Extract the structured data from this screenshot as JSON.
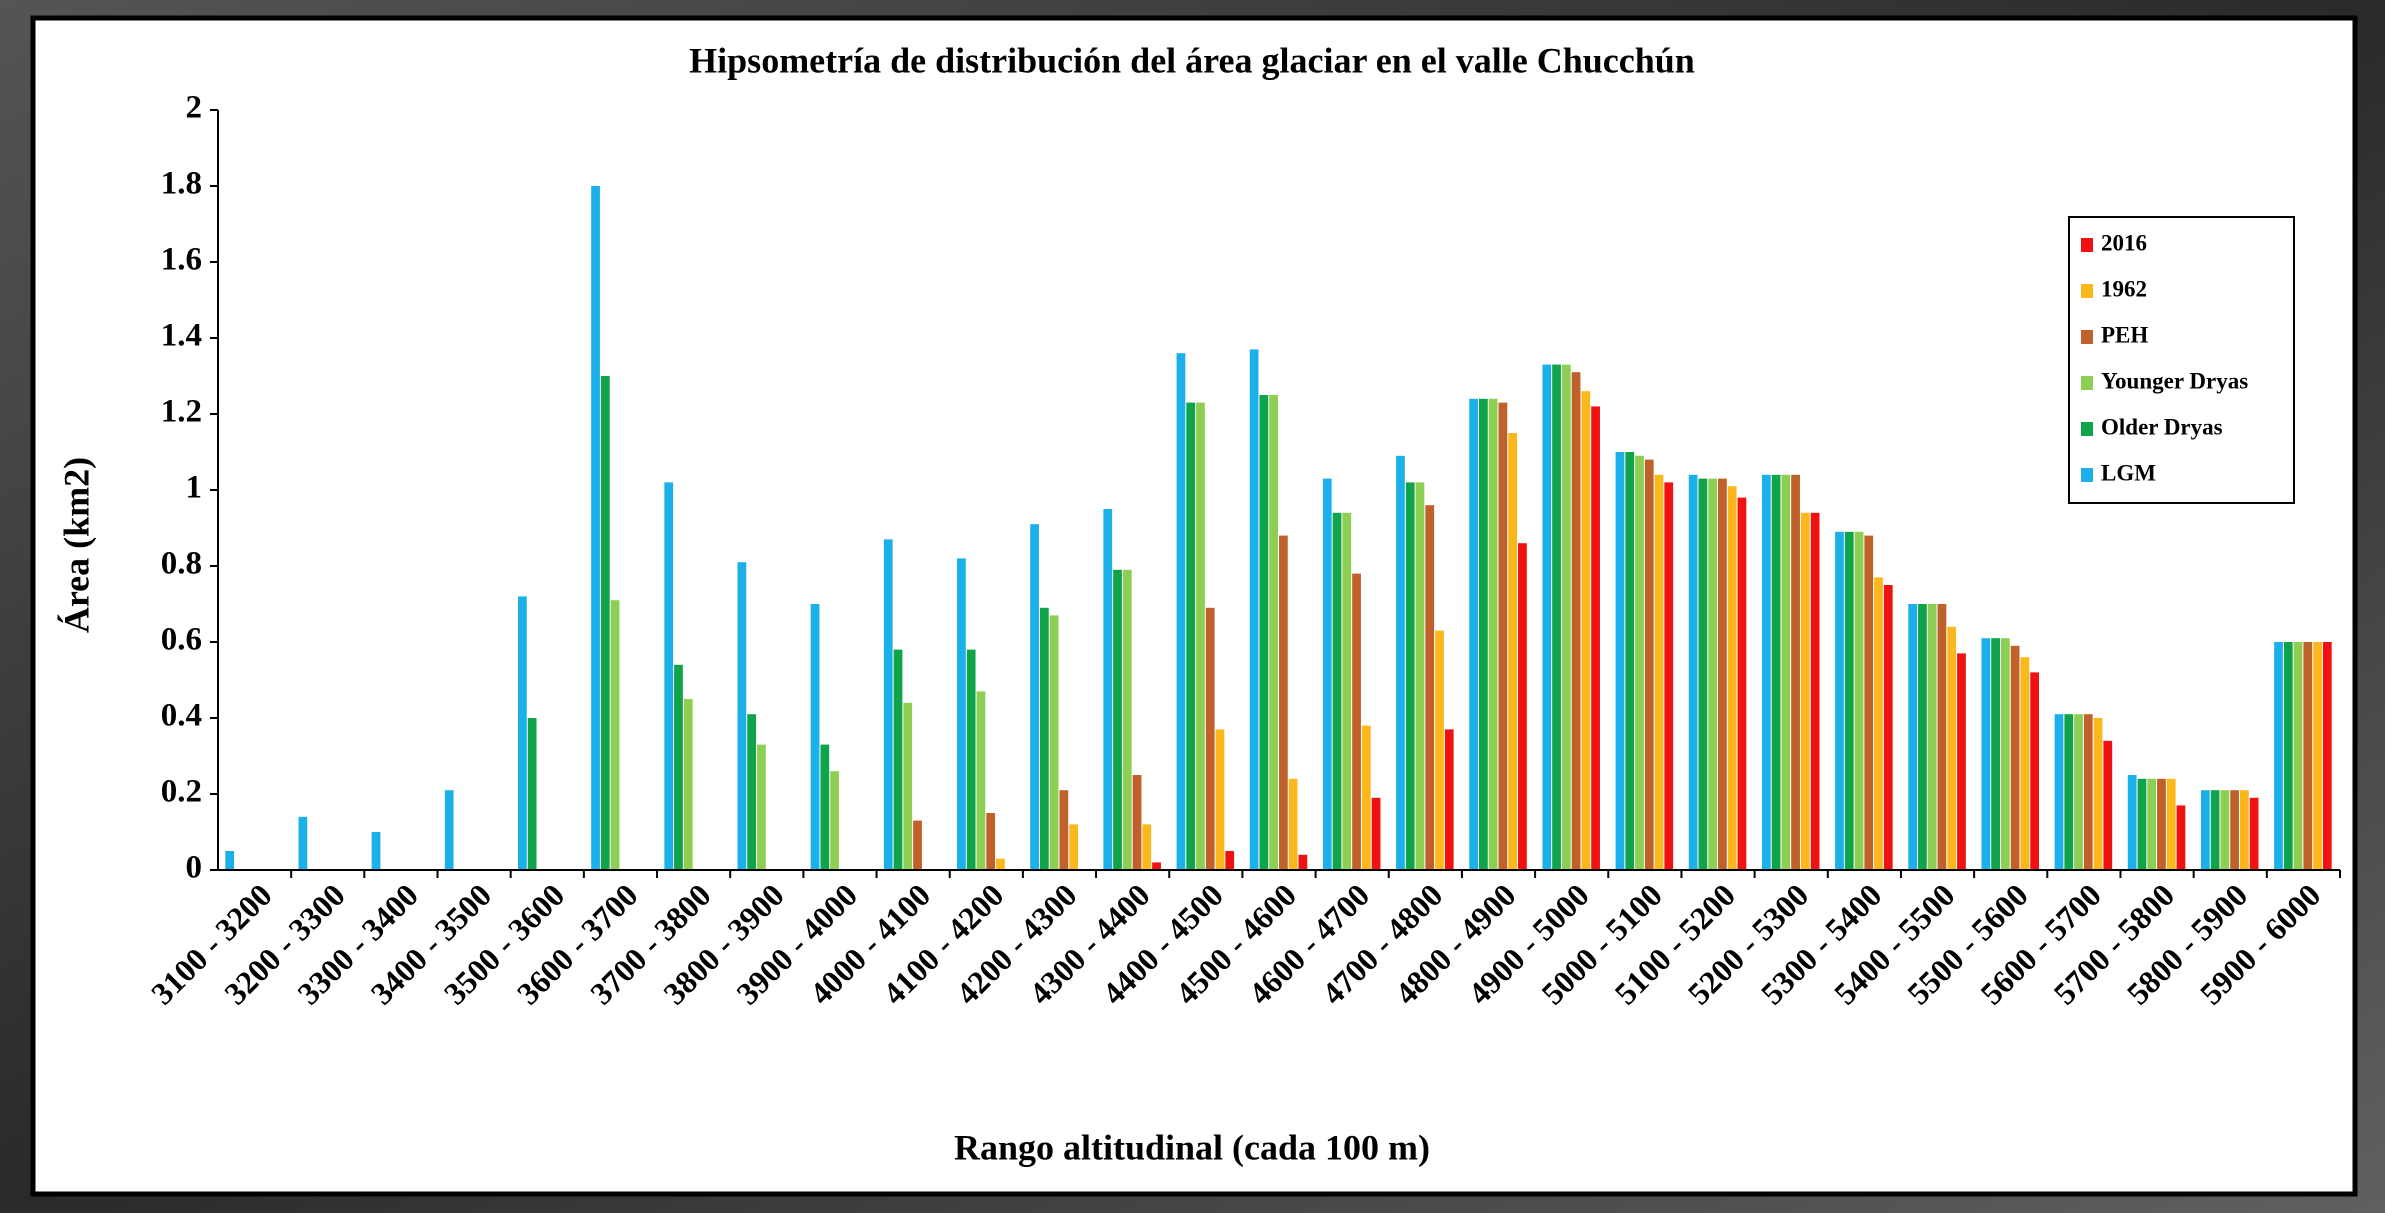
{
  "chart_data": {
    "type": "bar",
    "title": "Hipsometría de distribución del área glaciar en el valle Chucchún",
    "x_label": "Rango altitudinal (cada 100 m)",
    "y_label": "Área (km2)",
    "categories": [
      "3100 - 3200",
      "3200 - 3300",
      "3300 - 3400",
      "3400 - 3500",
      "3500 - 3600",
      "3600 - 3700",
      "3700 - 3800",
      "3800 - 3900",
      "3900 - 4000",
      "4000 - 4100",
      "4100 - 4200",
      "4200 - 4300",
      "4300 - 4400",
      "4400 - 4500",
      "4500 - 4600",
      "4600 - 4700",
      "4700 - 4800",
      "4800 - 4900",
      "4900 - 5000",
      "5000 - 5100",
      "5100 - 5200",
      "5200 - 5300",
      "5300 - 5400",
      "5400 - 5500",
      "5500 - 5600",
      "5600 - 5700",
      "5700 - 5800",
      "5800 - 5900",
      "5900 - 6000"
    ],
    "series": [
      {
        "name": "LGM",
        "color": "#1cb0ea",
        "values": [
          0.05,
          0.14,
          0.1,
          0.21,
          0.72,
          1.8,
          1.02,
          0.81,
          0.7,
          0.87,
          0.82,
          0.91,
          0.95,
          1.36,
          1.37,
          1.03,
          1.09,
          1.24,
          1.33,
          1.1,
          1.04,
          1.04,
          0.89,
          0.7,
          0.61,
          0.41,
          0.25,
          0.21,
          0.6
        ]
      },
      {
        "name": "Older Dryas",
        "color": "#0fa34a",
        "values": [
          0,
          0,
          0,
          0,
          0.4,
          1.3,
          0.54,
          0.41,
          0.33,
          0.58,
          0.58,
          0.69,
          0.79,
          1.23,
          1.25,
          0.94,
          1.02,
          1.24,
          1.33,
          1.1,
          1.03,
          1.04,
          0.89,
          0.7,
          0.61,
          0.41,
          0.24,
          0.21,
          0.6
        ]
      },
      {
        "name": "Younger Dryas",
        "color": "#8dcf52",
        "values": [
          0,
          0,
          0,
          0,
          0,
          0.71,
          0.45,
          0.33,
          0.26,
          0.44,
          0.47,
          0.67,
          0.79,
          1.23,
          1.25,
          0.94,
          1.02,
          1.24,
          1.33,
          1.09,
          1.03,
          1.04,
          0.89,
          0.7,
          0.61,
          0.41,
          0.24,
          0.21,
          0.6
        ]
      },
      {
        "name": "PEH",
        "color": "#c0612b",
        "values": [
          0,
          0,
          0,
          0,
          0,
          0,
          0,
          0,
          0,
          0.13,
          0.15,
          0.21,
          0.25,
          0.69,
          0.88,
          0.78,
          0.96,
          1.23,
          1.31,
          1.08,
          1.03,
          1.04,
          0.88,
          0.7,
          0.59,
          0.41,
          0.24,
          0.21,
          0.6
        ]
      },
      {
        "name": "1962",
        "color": "#fbb81c",
        "values": [
          0,
          0,
          0,
          0,
          0,
          0,
          0,
          0,
          0,
          0,
          0.03,
          0.12,
          0.12,
          0.37,
          0.24,
          0.38,
          0.63,
          1.15,
          1.26,
          1.04,
          1.01,
          0.94,
          0.77,
          0.64,
          0.56,
          0.4,
          0.24,
          0.21,
          0.6
        ]
      },
      {
        "name": "2016",
        "color": "#f01212",
        "values": [
          0,
          0,
          0,
          0,
          0,
          0,
          0,
          0,
          0,
          0,
          0,
          0,
          0.02,
          0.05,
          0.04,
          0.19,
          0.37,
          0.86,
          1.22,
          1.02,
          0.98,
          0.94,
          0.75,
          0.57,
          0.52,
          0.34,
          0.17,
          0.19,
          0.6
        ]
      }
    ],
    "ylim": [
      0,
      2
    ],
    "yticks": [
      0,
      0.2,
      0.4,
      0.6,
      0.8,
      1,
      1.2,
      1.4,
      1.6,
      1.8,
      2
    ],
    "grid": false
  }
}
